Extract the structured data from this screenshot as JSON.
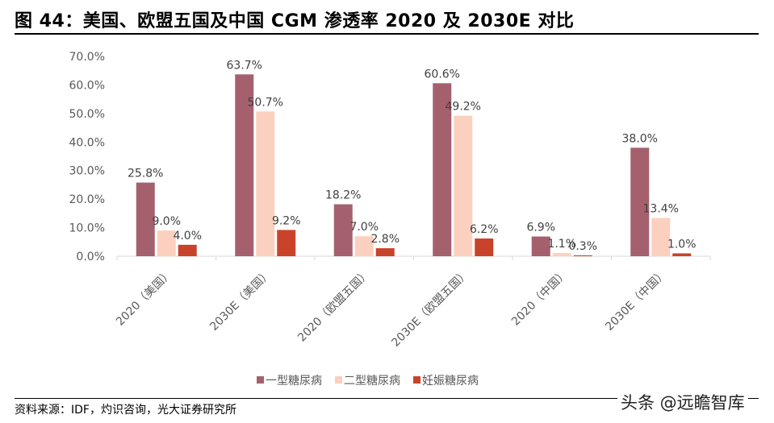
{
  "title": "图 44：美国、欧盟五国及中国 CGM 渗透率 2020 及 2030E 对比",
  "source": "资料来源：IDF，灼识咨询，光大证券研究所",
  "watermark": "头条 @远瞻智库",
  "chart_data": {
    "type": "bar",
    "categories": [
      "2020（美国）",
      "2030E（美国）",
      "2020（欧盟五国）",
      "2030E（欧盟五国）",
      "2020（中国）",
      "2030E（中国）"
    ],
    "series": [
      {
        "name": "一型糖尿病",
        "color": "#A5606E",
        "values": [
          25.8,
          63.7,
          18.2,
          60.6,
          6.9,
          38.0
        ],
        "labels": [
          "25.8%",
          "63.7%",
          "18.2%",
          "60.6%",
          "6.9%",
          "38.0%"
        ]
      },
      {
        "name": "二型糖尿病",
        "color": "#FCD0BF",
        "values": [
          9.0,
          50.7,
          7.0,
          49.2,
          1.1,
          13.4
        ],
        "labels": [
          "9.0%",
          "50.7%",
          "7.0%",
          "49.2%",
          "1.1%",
          "13.4%"
        ]
      },
      {
        "name": "妊娠糖尿病",
        "color": "#C8432A",
        "values": [
          4.0,
          9.2,
          2.8,
          6.2,
          0.3,
          1.0
        ],
        "labels": [
          "4.0%",
          "9.2%",
          "2.8%",
          "6.2%",
          "0.3%",
          "1.0%"
        ]
      }
    ],
    "ylim": [
      0,
      70
    ],
    "yticks": [
      "0.0%",
      "10.0%",
      "20.0%",
      "30.0%",
      "40.0%",
      "50.0%",
      "60.0%",
      "70.0%"
    ],
    "grid": false,
    "legend": "bottom"
  }
}
